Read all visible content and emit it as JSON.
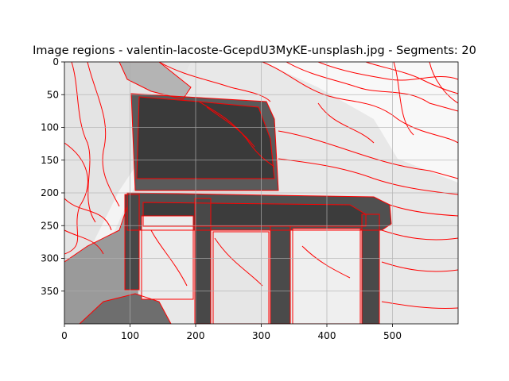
{
  "chart_data": {
    "type": "heatmap",
    "title": "Image regions - valentin-lacoste-GcepdU3MyKE-unsplash.jpg - Segments: 20",
    "xlabel": "",
    "ylabel": "",
    "xlim": [
      0,
      600
    ],
    "ylim": [
      400,
      0
    ],
    "x_ticks": [
      0,
      100,
      200,
      300,
      400,
      500
    ],
    "y_ticks": [
      0,
      50,
      100,
      150,
      200,
      250,
      300,
      350
    ],
    "grid": true,
    "segments": 20,
    "boundary_color": "#ff0000",
    "colormap": "gray",
    "regions": [
      {
        "name": "background-right-light",
        "shade": "#f4f4f4"
      },
      {
        "name": "background-left",
        "shade": "#e2e2e2"
      },
      {
        "name": "chair-backrest",
        "shade": "#3a3a3a"
      },
      {
        "name": "chair-seat",
        "shade": "#505050"
      },
      {
        "name": "chair-legs",
        "shade": "#484848"
      },
      {
        "name": "floor-shadow",
        "shade": "#7a7a7a"
      },
      {
        "name": "under-chair-panels",
        "shade": "#ececec"
      }
    ]
  }
}
